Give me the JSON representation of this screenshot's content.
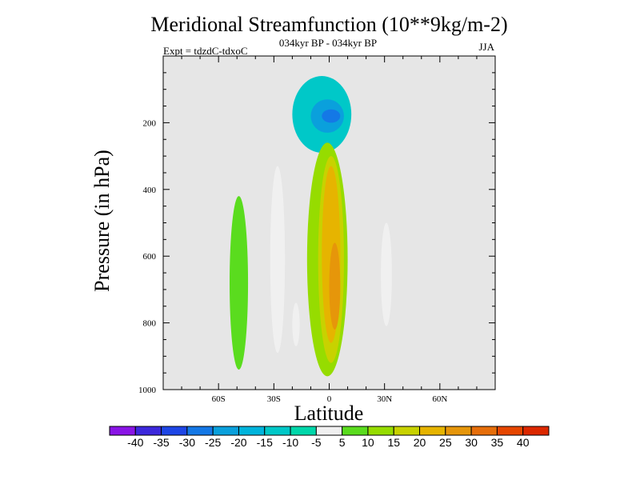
{
  "chart_data": {
    "type": "contour",
    "title": "Meridional Streamfunction (10**9kg/m-2)",
    "subtitle": "034kyr BP - 034kyr BP",
    "experiment": "Expt = tdzdC-tdxoC",
    "season": "JJA",
    "xlabel": "Latitude",
    "ylabel": "Pressure (in hPa)",
    "xlim": [
      -90,
      90
    ],
    "ylim": [
      1000,
      0
    ],
    "x_ticks": [
      {
        "value": -60,
        "label": "60S"
      },
      {
        "value": -30,
        "label": "30S"
      },
      {
        "value": 0,
        "label": "0"
      },
      {
        "value": 30,
        "label": "30N"
      },
      {
        "value": 60,
        "label": "60N"
      }
    ],
    "y_ticks": [
      {
        "value": 200,
        "label": "200"
      },
      {
        "value": 400,
        "label": "400"
      },
      {
        "value": 600,
        "label": "600"
      },
      {
        "value": 800,
        "label": "800"
      },
      {
        "value": 1000,
        "label": "1000"
      }
    ],
    "background_color": "#e6e6e6",
    "colorbar": {
      "labels": [
        "-40",
        "-35",
        "-30",
        "-25",
        "-20",
        "-15",
        "-10",
        "-5",
        "5",
        "10",
        "15",
        "20",
        "25",
        "30",
        "35",
        "40"
      ],
      "colors": [
        "#8a14e6",
        "#3c28dc",
        "#1e46e6",
        "#1478e6",
        "#0aa0dc",
        "#00b4dc",
        "#00c8c8",
        "#00d7aa",
        "#f0f0f0",
        "#5adc1e",
        "#96dc00",
        "#c8d200",
        "#e6b400",
        "#e6960a",
        "#e66e0a",
        "#e64600",
        "#dc2800"
      ]
    },
    "regions": [
      {
        "name": "upper-negative-cell",
        "value": -15,
        "lat": [
          -20,
          12
        ],
        "p": [
          60,
          290
        ]
      },
      {
        "name": "upper-negative-core",
        "value": -25,
        "lat": [
          -10,
          8
        ],
        "p": [
          130,
          230
        ]
      },
      {
        "name": "upper-negative-peak",
        "value": -30,
        "lat": [
          -4,
          6
        ],
        "p": [
          160,
          200
        ]
      },
      {
        "name": "equatorial-positive-cell",
        "value": 10,
        "lat": [
          -12,
          10
        ],
        "p": [
          260,
          960
        ]
      },
      {
        "name": "equatorial-positive-mid",
        "value": 15,
        "lat": [
          -6,
          8
        ],
        "p": [
          300,
          920
        ]
      },
      {
        "name": "equatorial-positive-core",
        "value": 20,
        "lat": [
          -4,
          6
        ],
        "p": [
          330,
          860
        ]
      },
      {
        "name": "equatorial-positive-peak",
        "value": 25,
        "lat": [
          0,
          6
        ],
        "p": [
          560,
          820
        ]
      },
      {
        "name": "sh-subtropical-negative",
        "value": -5,
        "lat": [
          -32,
          -24
        ],
        "p": [
          330,
          890
        ]
      },
      {
        "name": "sh-small-negative",
        "value": -5,
        "lat": [
          -20,
          -16
        ],
        "p": [
          740,
          870
        ]
      },
      {
        "name": "sh-midlat-positive",
        "value": 5,
        "lat": [
          -54,
          -44
        ],
        "p": [
          420,
          940
        ]
      },
      {
        "name": "nh-subtropical-negative",
        "value": -5,
        "lat": [
          28,
          34
        ],
        "p": [
          500,
          810
        ]
      }
    ]
  }
}
